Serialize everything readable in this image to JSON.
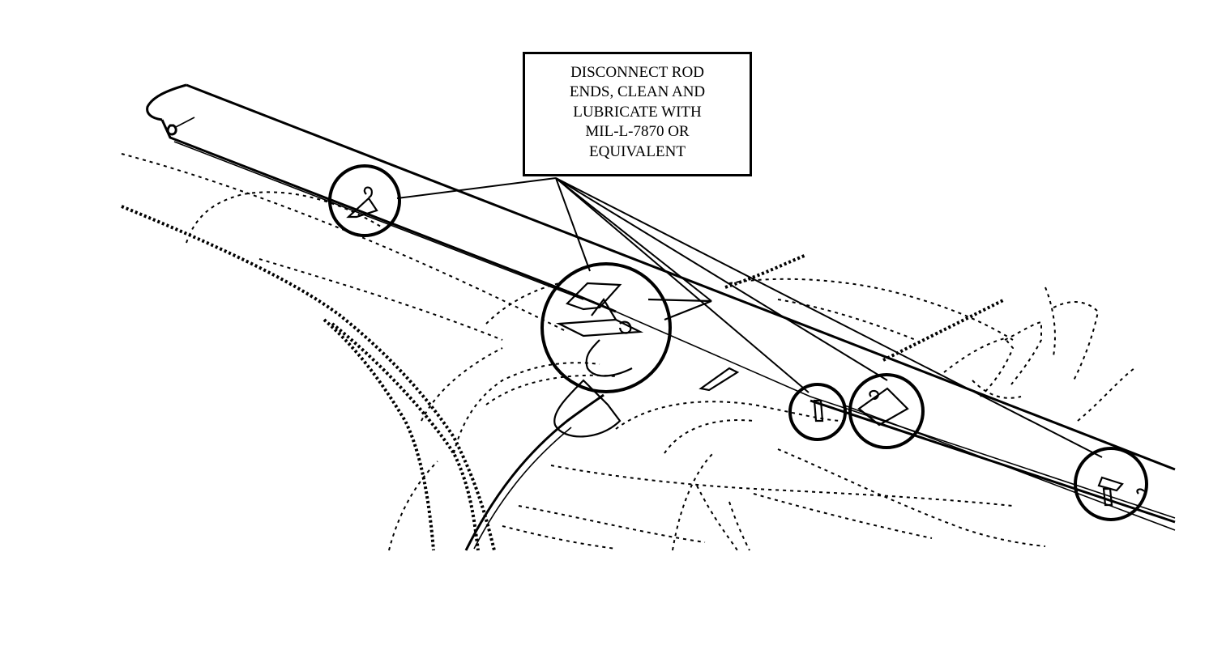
{
  "figure": {
    "callout": {
      "lines": [
        "DISCONNECT ROD",
        "ENDS, CLEAN AND",
        "LUBRICATE WITH",
        "MIL-L-7870 OR",
        "EQUIVALENT"
      ]
    },
    "detail_circle_count": 5,
    "ink_color": "#000000",
    "background_color": "#ffffff"
  }
}
